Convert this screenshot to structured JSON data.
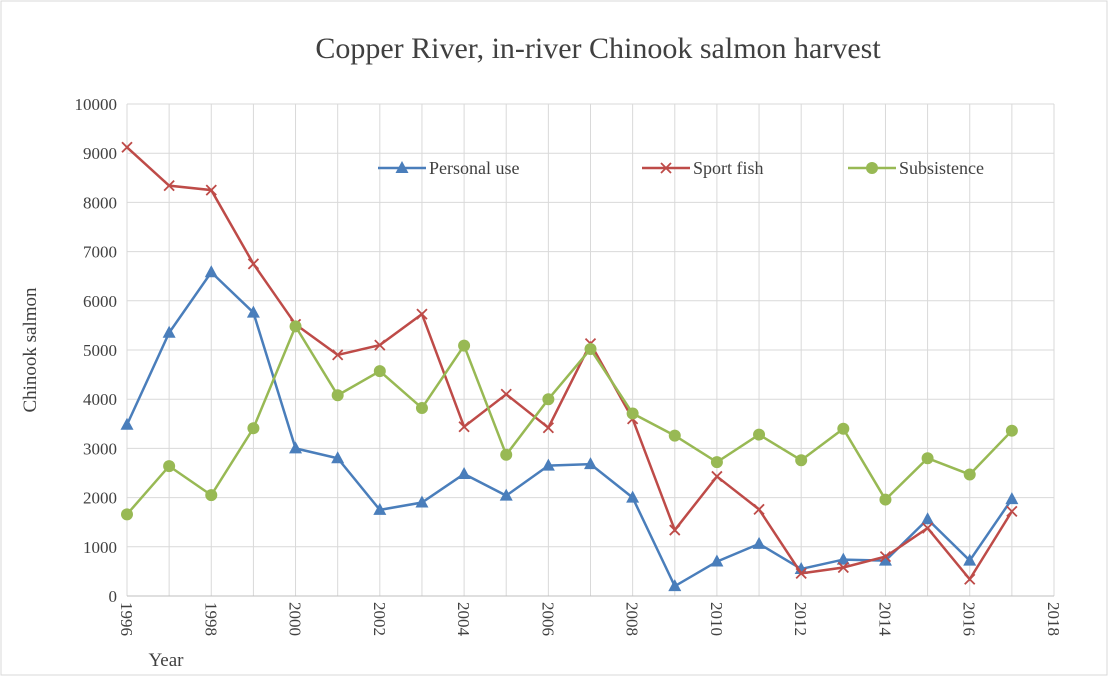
{
  "chart_data": {
    "type": "line",
    "title": "Copper River, in-river Chinook salmon harvest",
    "x_label": "Year",
    "y_label": "Chinook salmon",
    "x": [
      1996,
      1997,
      1998,
      1999,
      2000,
      2001,
      2002,
      2003,
      2004,
      2005,
      2006,
      2007,
      2008,
      2009,
      2010,
      2011,
      2012,
      2013,
      2014,
      2015,
      2016,
      2017
    ],
    "series": [
      {
        "name": "Personal use",
        "color": "#4a7ebb",
        "marker": "triangle",
        "values": [
          3480,
          5350,
          6580,
          5760,
          3000,
          2800,
          1750,
          1900,
          2480,
          2040,
          2650,
          2680,
          2000,
          200,
          700,
          1060,
          550,
          740,
          720,
          1560,
          720,
          1970
        ]
      },
      {
        "name": "Sport fish",
        "color": "#be4b48",
        "marker": "x",
        "values": [
          9120,
          8340,
          8250,
          6750,
          5520,
          4900,
          5100,
          5730,
          3440,
          4100,
          3420,
          5130,
          3600,
          1340,
          2430,
          1760,
          460,
          580,
          800,
          1380,
          340,
          1720
        ]
      },
      {
        "name": "Subsistence",
        "color": "#98b954",
        "marker": "circle",
        "values": [
          1660,
          2640,
          2050,
          3410,
          5480,
          4080,
          4570,
          3820,
          5090,
          2870,
          4000,
          5020,
          3710,
          3260,
          2720,
          3280,
          2760,
          3400,
          1960,
          2800,
          2470,
          3360
        ]
      }
    ],
    "xlim": [
      1996,
      2018
    ],
    "xticks": [
      1996,
      1998,
      2000,
      2002,
      2004,
      2006,
      2008,
      2010,
      2012,
      2014,
      2016,
      2018
    ],
    "xminorticks": [
      1997,
      1999,
      2001,
      2003,
      2005,
      2007,
      2009,
      2011,
      2013,
      2015,
      2017
    ],
    "ylim": [
      0,
      10000
    ],
    "yticks": [
      0,
      1000,
      2000,
      3000,
      4000,
      5000,
      6000,
      7000,
      8000,
      9000,
      10000
    ],
    "grid": true,
    "legend": "top"
  }
}
